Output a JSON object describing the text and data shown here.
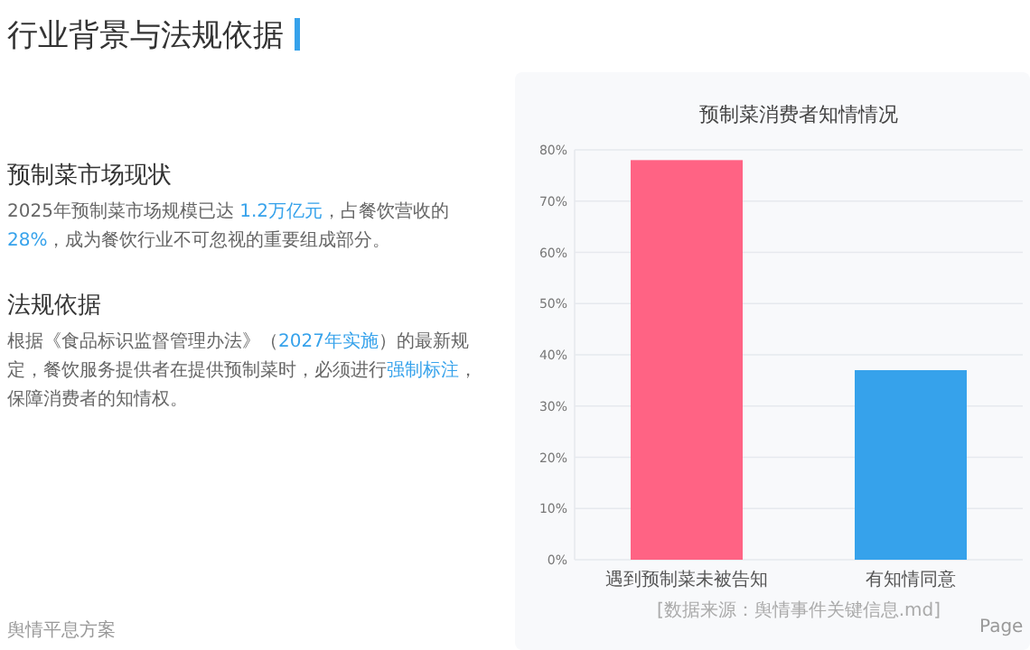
{
  "chart_data": [
    {
      "type": "other",
      "title": "行业背景与法规依据",
      "annotations": [
        "预制菜市场现状",
        "2025年预制菜市场规模已达 **1.2万亿元**，占餐饮营收的 **28%**，成为餐饮行业不可忽视的重要组成部分。",
        "法规依据",
        "根据《食品标识监督管理办法》（**2027年实施**）的最新规定，餐饮服务提供者在提供预制菜时，必须进行**强制标注**，保障消费者的知情权。",
        "舆情平息方案",
        "Page"
      ]
    },
    {
      "type": "bar",
      "title": "预制菜消费者知情情况",
      "categories": [
        "遇到预制菜未被告知",
        "有知情同意"
      ],
      "values": [
        78,
        37
      ],
      "colors": [
        "#ff6384",
        "#36a2eb"
      ],
      "ylim": [
        0,
        80
      ],
      "yticks": [
        {
          "value": 0,
          "label": "0%"
        },
        {
          "value": 10,
          "label": "10%"
        },
        {
          "value": 20,
          "label": "20%"
        },
        {
          "value": 30,
          "label": "30%"
        },
        {
          "value": 40,
          "label": "40%"
        },
        {
          "value": 50,
          "label": "50%"
        },
        {
          "value": 60,
          "label": "60%"
        },
        {
          "value": 70,
          "label": "70%"
        },
        {
          "value": 80,
          "label": "80%"
        }
      ],
      "grid": "y",
      "annotations": [
        "[数据来源：舆情事件关键信息.md]"
      ]
    }
  ]
}
